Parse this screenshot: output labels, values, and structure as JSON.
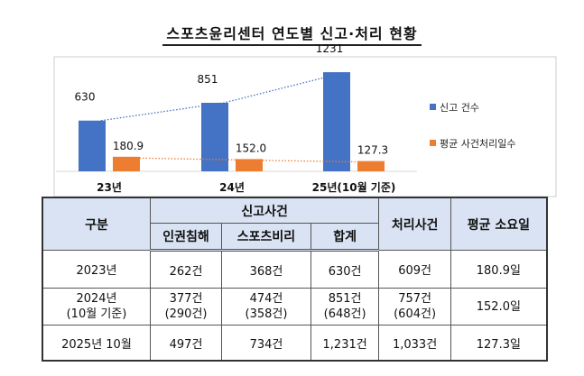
{
  "title": "스포츠윤리센터 연도별 신고·처리 현황",
  "chart_data": {
    "type": "bar",
    "categories": [
      "23년",
      "24년",
      "25년(10월 기준)"
    ],
    "series": [
      {
        "name": "신고 건수",
        "values": [
          630,
          851,
          1231
        ],
        "labels": [
          "630",
          "851",
          "1231"
        ],
        "color": "#4472c4"
      },
      {
        "name": "평균 사건처리일수",
        "values": [
          180.9,
          152.0,
          127.3
        ],
        "labels": [
          "180.9",
          "152.0",
          "127.3"
        ],
        "color": "#ed7d31"
      }
    ],
    "trendlines": "dotted",
    "legend": "right"
  },
  "table": {
    "headers": {
      "category": "구분",
      "reports": "신고사건",
      "sub": [
        "인권침해",
        "스포츠비리",
        "합계"
      ],
      "processed": "처리사건",
      "avg_days": "평균 소요일"
    },
    "rows": [
      {
        "label": [
          "2023년"
        ],
        "c": [
          [
            "262건"
          ],
          [
            "368건"
          ],
          [
            "630건"
          ],
          [
            "609건"
          ],
          [
            "180.9일"
          ]
        ]
      },
      {
        "label": [
          "2024년",
          "(10월 기준)"
        ],
        "c": [
          [
            "377건",
            "(290건)"
          ],
          [
            "474건",
            "(358건)"
          ],
          [
            "851건",
            "(648건)"
          ],
          [
            "757건",
            "(604건)"
          ],
          [
            "152.0일"
          ]
        ]
      },
      {
        "label": [
          "2025년 10월"
        ],
        "c": [
          [
            "497건"
          ],
          [
            "734건"
          ],
          [
            "1,231건"
          ],
          [
            "1,033건"
          ],
          [
            "127.3일"
          ]
        ]
      }
    ]
  }
}
